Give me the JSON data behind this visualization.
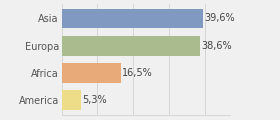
{
  "categories": [
    "Asia",
    "Europa",
    "Africa",
    "America"
  ],
  "values": [
    39.6,
    38.6,
    16.5,
    5.3
  ],
  "labels": [
    "39,6%",
    "38,6%",
    "16,5%",
    "5,3%"
  ],
  "bar_colors": [
    "#8099c0",
    "#aabb8e",
    "#e8aa78",
    "#eedd88"
  ],
  "background_color": "#f0f0f0",
  "xlim": [
    0,
    47
  ],
  "label_fontsize": 7,
  "tick_fontsize": 7,
  "grid_color": "#cccccc",
  "grid_xticks": [
    0,
    10,
    20,
    30,
    40
  ]
}
